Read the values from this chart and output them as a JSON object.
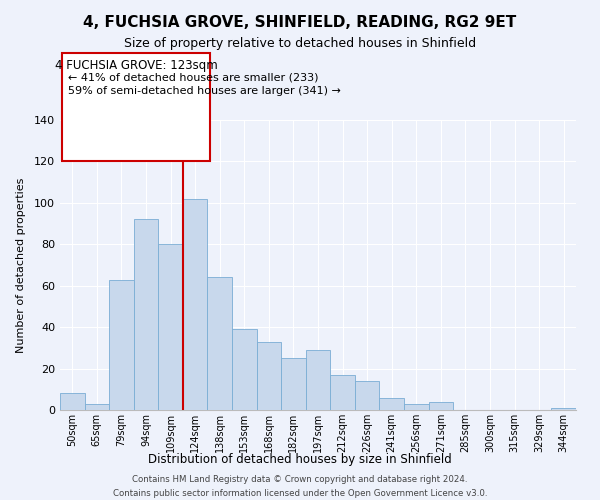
{
  "title": "4, FUCHSIA GROVE, SHINFIELD, READING, RG2 9ET",
  "subtitle": "Size of property relative to detached houses in Shinfield",
  "xlabel": "Distribution of detached houses by size in Shinfield",
  "ylabel": "Number of detached properties",
  "bin_labels": [
    "50sqm",
    "65sqm",
    "79sqm",
    "94sqm",
    "109sqm",
    "124sqm",
    "138sqm",
    "153sqm",
    "168sqm",
    "182sqm",
    "197sqm",
    "212sqm",
    "226sqm",
    "241sqm",
    "256sqm",
    "271sqm",
    "285sqm",
    "300sqm",
    "315sqm",
    "329sqm",
    "344sqm"
  ],
  "bar_heights": [
    8,
    3,
    63,
    92,
    80,
    102,
    64,
    39,
    33,
    25,
    29,
    17,
    14,
    6,
    3,
    4,
    0,
    0,
    0,
    0,
    1
  ],
  "bar_color": "#c8d8ec",
  "bar_edge_color": "#7aadd4",
  "highlight_line_color": "#cc0000",
  "highlight_bar_index": 5,
  "annotation_title": "4 FUCHSIA GROVE: 123sqm",
  "annotation_line1": "← 41% of detached houses are smaller (233)",
  "annotation_line2": "59% of semi-detached houses are larger (341) →",
  "annotation_box_color": "#ffffff",
  "annotation_box_edge_color": "#cc0000",
  "ylim": [
    0,
    140
  ],
  "yticks": [
    0,
    20,
    40,
    60,
    80,
    100,
    120,
    140
  ],
  "footer_line1": "Contains HM Land Registry data © Crown copyright and database right 2024.",
  "footer_line2": "Contains public sector information licensed under the Open Government Licence v3.0.",
  "background_color": "#eef2fb",
  "grid_color": "#ffffff",
  "title_fontsize": 11,
  "subtitle_fontsize": 9
}
